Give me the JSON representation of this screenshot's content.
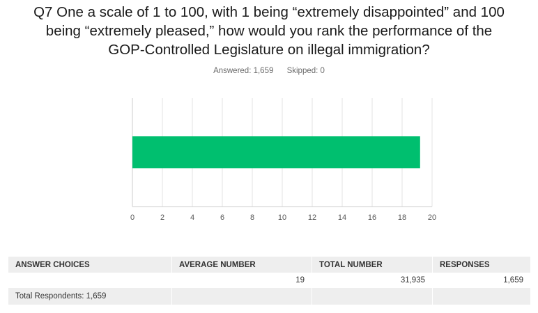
{
  "question": {
    "lines": [
      "Q7 One a scale of 1 to 100, with 1 being “extremely disappointed” and 100",
      "being “extremely pleased,” how would you rank the performance of the",
      "GOP-Controlled Legislature on illegal immigration?"
    ]
  },
  "stats": {
    "answered": "Answered: 1,659",
    "skipped": "Skipped: 0"
  },
  "chart_data": {
    "type": "bar",
    "orientation": "horizontal",
    "categories": [
      ""
    ],
    "values": [
      19.2
    ],
    "xlim": [
      0,
      20
    ],
    "xticks": [
      "0",
      "2",
      "4",
      "6",
      "8",
      "10",
      "12",
      "14",
      "16",
      "18",
      "20"
    ],
    "grid": true,
    "bar_color": "#00bf6f",
    "title": "",
    "xlabel": "",
    "ylabel": ""
  },
  "table": {
    "headers": [
      "ANSWER CHOICES",
      "AVERAGE NUMBER",
      "TOTAL NUMBER",
      "RESPONSES"
    ],
    "rows": [
      [
        "",
        "19",
        "31,935",
        "1,659"
      ]
    ],
    "total": "Total Respondents: 1,659"
  }
}
